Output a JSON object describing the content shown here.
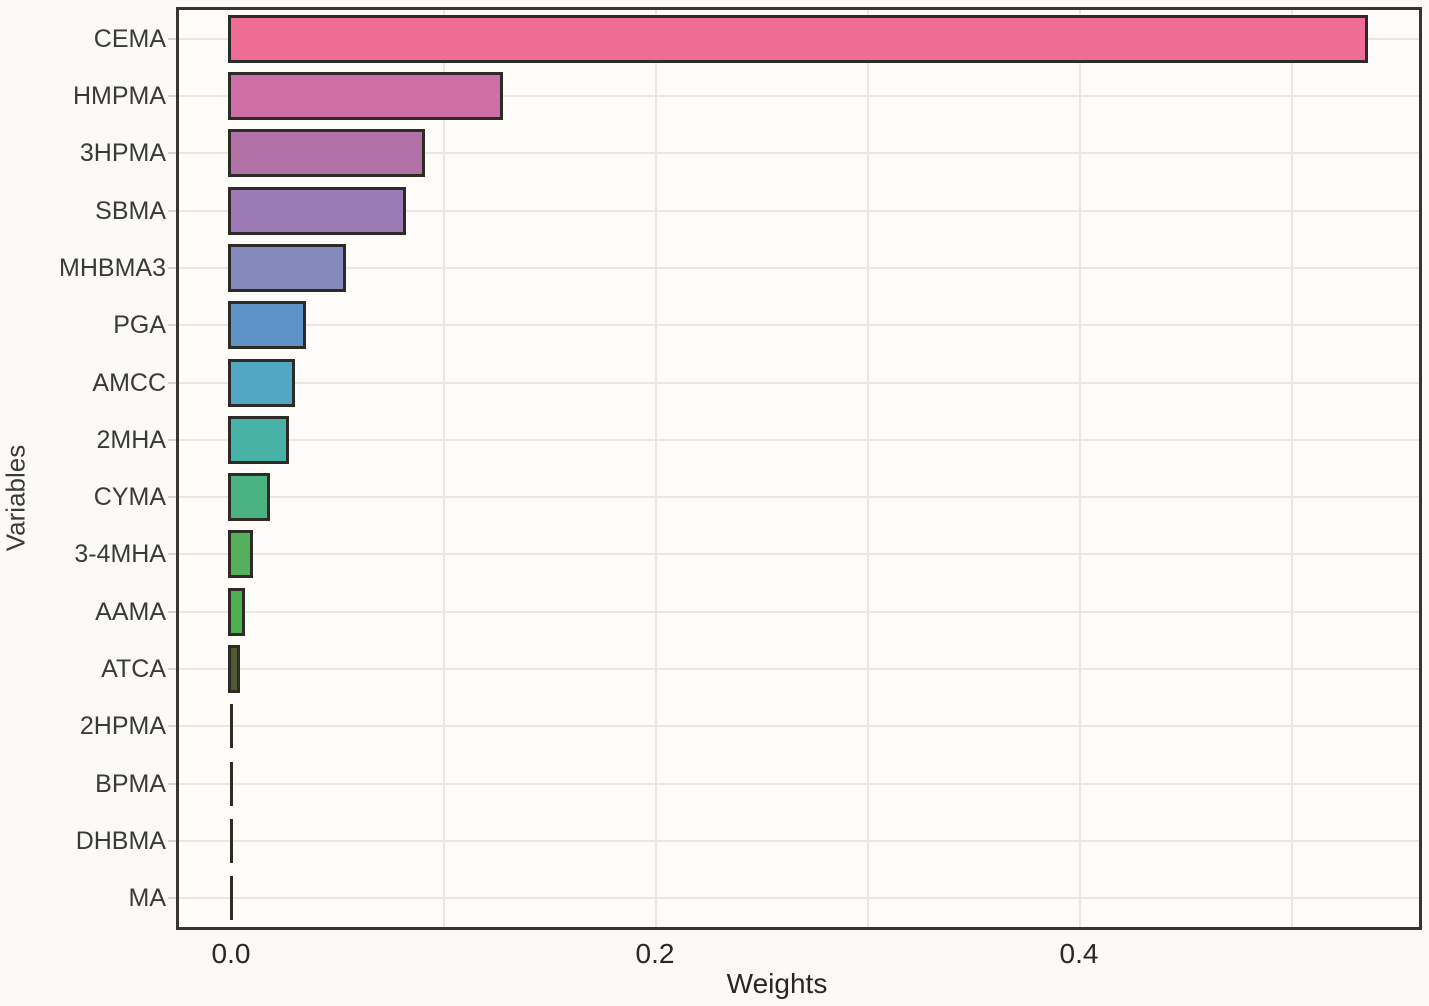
{
  "figure": {
    "background": "#FBFAF6",
    "plot_background": "#FDFCF9",
    "frame_color": "#3A3431",
    "grid_color": "#EAE6E1",
    "bar_edge_color": "#2E2A26",
    "label_color": "#3A3A3A",
    "tick_label_color": "#2B2623"
  },
  "chart_data": {
    "type": "bar",
    "orientation": "horizontal",
    "title": "",
    "xlabel": "Weights",
    "ylabel": "Variables",
    "categories": [
      "CEMA",
      "HMPMA",
      "3HPMA",
      "SBMA",
      "MHBMA3",
      "PGA",
      "AMCC",
      "2MHA",
      "CYMA",
      "3-4MHA",
      "AAMA",
      "ATCA",
      "2HPMA",
      "BPMA",
      "DHBMA",
      "MA"
    ],
    "values": [
      0.535,
      0.127,
      0.09,
      0.081,
      0.053,
      0.034,
      0.029,
      0.026,
      0.017,
      0.009,
      0.005,
      0.003,
      0.001,
      0.001,
      0.001,
      0.001
    ],
    "bar_colors": [
      "#EE6C96",
      "#CE6FA8",
      "#B173A7",
      "#9B7AB5",
      "#8489BC",
      "#5E93C8",
      "#51A7C4",
      "#49B2A6",
      "#4BB281",
      "#55B05E",
      "#4CB050",
      "#4F5A2D",
      "#2E2A26",
      "#2E2A26",
      "#2E2A26",
      "#2E2A26"
    ],
    "xlim": [
      -0.026,
      0.562
    ],
    "x_ticks": [
      {
        "value": 0.0,
        "label": "0.0"
      },
      {
        "value": 0.2,
        "label": "0.2"
      },
      {
        "value": 0.4,
        "label": "0.4"
      }
    ],
    "minor_grid_values": [
      0.1,
      0.2,
      0.3,
      0.4,
      0.5
    ],
    "grid": "vertical gridlines every 0.1; horizontal gridlines at each category center",
    "legend": "none"
  }
}
